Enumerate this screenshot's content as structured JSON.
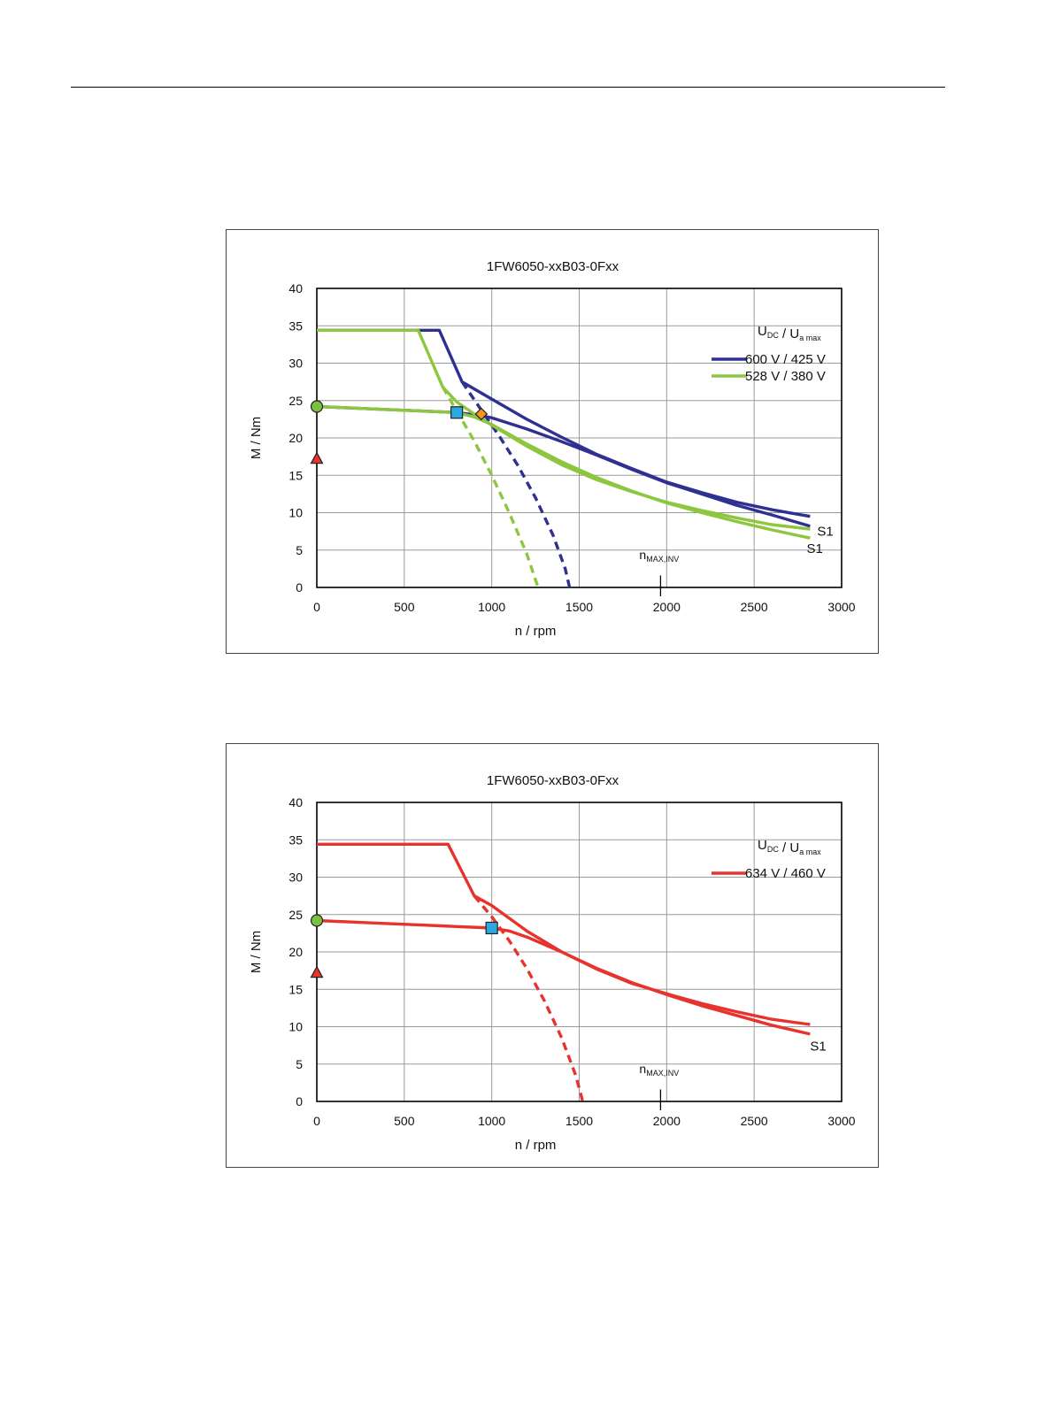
{
  "colors": {
    "blue": "#2e3192",
    "green": "#8dc63f",
    "red": "#e8322d",
    "cyan": "#29a9df",
    "orange": "#f7941d",
    "dot_green": "#7ac143",
    "triangle_red": "#e8322d"
  },
  "chart_data": [
    {
      "type": "line",
      "title": "1FW6050-xxB03-0Fxx",
      "xlabel": "n / rpm",
      "ylabel": "M / Nm",
      "xlim": [
        0,
        3000
      ],
      "ylim": [
        0,
        40
      ],
      "xticks": [
        "0",
        "500",
        "1000",
        "1500",
        "2000",
        "2500",
        "3000"
      ],
      "yticks": [
        "0",
        "5",
        "10",
        "15",
        "20",
        "25",
        "30",
        "35",
        "40"
      ],
      "grid": true,
      "legend_title": "U_DC / U_a max",
      "legend_position": "top-right",
      "nmax_label": "n_MAX,INV",
      "nmax_x": 1965,
      "s1_labels": [
        {
          "text": "S1",
          "x": 2860,
          "y": 7.5
        },
        {
          "text": "S1",
          "x": 2800,
          "y": 5.2
        }
      ],
      "series": [
        {
          "name": "600 V / 425 V",
          "color": "blue",
          "style": "solid",
          "x": [
            0,
            700,
            830,
            1000,
            1200,
            1400,
            1600,
            1800,
            2000,
            2200,
            2400,
            2600,
            2820
          ],
          "y": [
            34.4,
            34.4,
            27.5,
            25.2,
            22.5,
            20.1,
            17.8,
            15.9,
            14.1,
            12.7,
            11.4,
            10.4,
            9.5
          ]
        },
        {
          "name": "",
          "color": "blue",
          "style": "solid",
          "x": [
            0,
            200,
            400,
            600,
            800,
            900,
            1000,
            1200,
            1400,
            1600,
            1800,
            2000,
            2200,
            2400,
            2600,
            2820
          ],
          "y": [
            24.2,
            24.0,
            23.8,
            23.6,
            23.4,
            23.1,
            22.7,
            21.2,
            19.5,
            17.7,
            15.8,
            14.0,
            12.5,
            11.0,
            9.7,
            8.2
          ]
        },
        {
          "name": "",
          "color": "blue",
          "style": "dashed",
          "x": [
            830,
            950,
            1050,
            1150,
            1250,
            1350,
            1420,
            1445
          ],
          "y": [
            27.5,
            23.4,
            20.0,
            16.3,
            12.0,
            7.0,
            2.5,
            0
          ]
        },
        {
          "name": "528 V / 380 V",
          "color": "green",
          "style": "solid",
          "x": [
            0,
            580,
            720,
            800,
            900,
            1000,
            1200,
            1400,
            1600,
            1800,
            2000,
            2200,
            2400,
            2600,
            2820
          ],
          "y": [
            34.4,
            34.4,
            26.8,
            24.8,
            23.2,
            21.7,
            18.9,
            16.4,
            14.4,
            12.8,
            11.4,
            10.3,
            9.3,
            8.4,
            7.8
          ]
        },
        {
          "name": "",
          "color": "green",
          "style": "solid",
          "x": [
            0,
            200,
            400,
            600,
            800,
            900,
            1000,
            1200,
            1400,
            1600,
            1800,
            2000,
            2200,
            2400,
            2600,
            2820
          ],
          "y": [
            24.2,
            24.0,
            23.8,
            23.6,
            23.4,
            22.8,
            21.8,
            19.2,
            16.8,
            14.7,
            12.9,
            11.3,
            10.0,
            8.8,
            7.7,
            6.6
          ]
        },
        {
          "name": "",
          "color": "green",
          "style": "dashed",
          "x": [
            720,
            800,
            900,
            1000,
            1100,
            1200,
            1265
          ],
          "y": [
            26.8,
            23.6,
            19.6,
            15.0,
            10.0,
            4.5,
            0
          ]
        }
      ],
      "markers": [
        {
          "shape": "circle",
          "color": "dot_green",
          "x": 0,
          "y": 24.2
        },
        {
          "shape": "triangle",
          "color": "triangle_red",
          "x": 0,
          "y": 17.2
        },
        {
          "shape": "square",
          "color": "cyan",
          "x": 800,
          "y": 23.4
        },
        {
          "shape": "diamond",
          "color": "orange",
          "x": 940,
          "y": 23.2
        }
      ]
    },
    {
      "type": "line",
      "title": "1FW6050-xxB03-0Fxx",
      "xlabel": "n / rpm",
      "ylabel": "M / Nm",
      "xlim": [
        0,
        3000
      ],
      "ylim": [
        0,
        40
      ],
      "xticks": [
        "0",
        "500",
        "1000",
        "1500",
        "2000",
        "2500",
        "3000"
      ],
      "yticks": [
        "0",
        "5",
        "10",
        "15",
        "20",
        "25",
        "30",
        "35",
        "40"
      ],
      "grid": true,
      "legend_title": "U_DC / U_a max",
      "legend_position": "top-right",
      "nmax_label": "n_MAX,INV",
      "nmax_x": 1965,
      "s1_labels": [
        {
          "text": "S1",
          "x": 2820,
          "y": 7.4
        }
      ],
      "series": [
        {
          "name": "634 V / 460 V",
          "color": "red",
          "style": "solid",
          "x": [
            0,
            750,
            900,
            1000,
            1200,
            1400,
            1600,
            1800,
            2000,
            2200,
            2400,
            2600,
            2820
          ],
          "y": [
            34.4,
            34.4,
            27.5,
            26.2,
            22.8,
            20.0,
            17.7,
            15.8,
            14.4,
            13.1,
            12.0,
            11.0,
            10.3
          ]
        },
        {
          "name": "",
          "color": "red",
          "style": "solid",
          "x": [
            0,
            200,
            400,
            600,
            800,
            1000,
            1100,
            1200,
            1400,
            1600,
            1800,
            2000,
            2200,
            2400,
            2600,
            2820
          ],
          "y": [
            24.2,
            24.0,
            23.8,
            23.6,
            23.4,
            23.2,
            22.8,
            22.0,
            20.0,
            17.8,
            15.9,
            14.3,
            12.8,
            11.5,
            10.2,
            9.0
          ]
        },
        {
          "name": "",
          "color": "red",
          "style": "dashed",
          "x": [
            900,
            1000,
            1100,
            1200,
            1300,
            1400,
            1480,
            1520
          ],
          "y": [
            27.5,
            24.7,
            21.5,
            17.8,
            13.5,
            8.5,
            3.5,
            0
          ]
        }
      ],
      "markers": [
        {
          "shape": "circle",
          "color": "dot_green",
          "x": 0,
          "y": 24.2
        },
        {
          "shape": "triangle",
          "color": "triangle_red",
          "x": 0,
          "y": 17.2
        },
        {
          "shape": "square",
          "color": "cyan",
          "x": 1000,
          "y": 23.2
        }
      ]
    }
  ]
}
